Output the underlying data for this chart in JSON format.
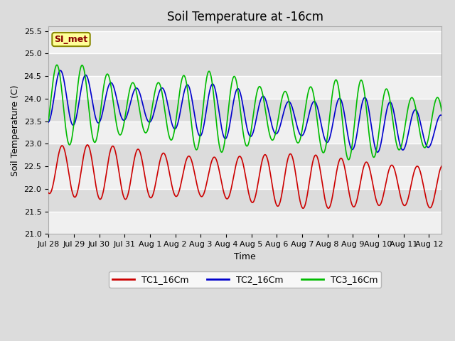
{
  "title": "Soil Temperature at -16cm",
  "xlabel": "Time",
  "ylabel": "Soil Temperature (C)",
  "ylim": [
    21.0,
    25.6
  ],
  "xlim_days": 15.5,
  "fig_bg": "#dcdcdc",
  "plot_bg": "#dcdcdc",
  "series": {
    "TC1_16Cm": {
      "color": "#cc0000",
      "linewidth": 1.2
    },
    "TC2_16Cm": {
      "color": "#0000cc",
      "linewidth": 1.2
    },
    "TC3_16Cm": {
      "color": "#00bb00",
      "linewidth": 1.2
    }
  },
  "annotation_text": "SI_met",
  "annotation_color": "#880000",
  "annotation_bg": "#ffff99",
  "annotation_border": "#888800",
  "tick_labels": [
    "Jul 28",
    "Jul 29",
    "Jul 30",
    "Jul 31",
    "Aug 1",
    "Aug 2",
    "Aug 3",
    "Aug 4",
    "Aug 5",
    "Aug 6",
    "Aug 7",
    "Aug 8",
    "Aug 9",
    "Aug 10",
    "Aug 11",
    "Aug 12"
  ],
  "title_fontsize": 12,
  "axis_label_fontsize": 9,
  "tick_fontsize": 8
}
